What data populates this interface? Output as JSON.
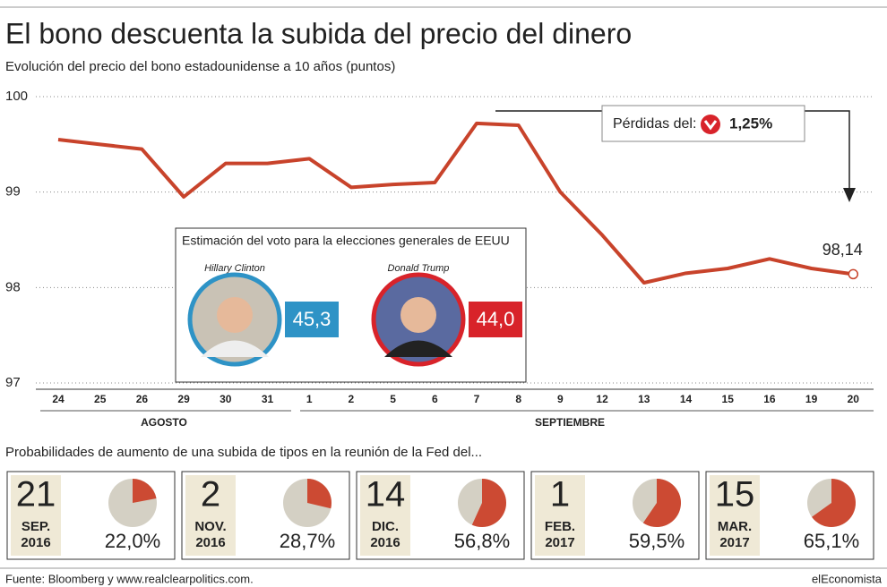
{
  "title": "El bono descuenta la subida del precio del dinero",
  "subtitle": "Evolución del precio del bono estadounidense a 10 años (puntos)",
  "source": "Fuente: Bloomberg y www.realclearpolitics.com.",
  "brand": "elEconomista",
  "chart_data": [
    {
      "type": "line",
      "categories": [
        "24",
        "25",
        "26",
        "29",
        "30",
        "31",
        "1",
        "2",
        "5",
        "6",
        "7",
        "8",
        "9",
        "12",
        "13",
        "14",
        "15",
        "16",
        "19",
        "20"
      ],
      "months": [
        "AGOSTO",
        "SEPTIEMBRE"
      ],
      "values": [
        99.55,
        99.5,
        99.45,
        98.95,
        99.3,
        99.3,
        99.35,
        99.05,
        99.08,
        99.1,
        99.72,
        99.7,
        99.0,
        98.55,
        98.05,
        98.15,
        98.2,
        98.3,
        98.2,
        98.14
      ],
      "value_labels": [
        null,
        null,
        null,
        null,
        null,
        null,
        null,
        null,
        null,
        null,
        null,
        null,
        null,
        null,
        null,
        null,
        null,
        null,
        null,
        "98,14"
      ],
      "color": "#c8432b",
      "ylim": [
        97,
        100
      ],
      "yticks": [
        97,
        98,
        99,
        100
      ],
      "grid": true,
      "loss_text": "Pérdidas del:",
      "loss_value": "1,25%"
    },
    {
      "type": "pie",
      "title": "Probabilidades de aumento de una subida de tipos en la reunión de la Fed del...",
      "colors": [
        "#cc4a33",
        "#d4d0c4"
      ],
      "meetings": [
        {
          "day": "21",
          "month": "SEP.",
          "year": "2016",
          "value": 22.0,
          "value_label": "22,0%"
        },
        {
          "day": "2",
          "month": "NOV.",
          "year": "2016",
          "value": 28.7,
          "value_label": "28,7%"
        },
        {
          "day": "14",
          "month": "DIC.",
          "year": "2016",
          "value": 56.8,
          "value_label": "56,8%"
        },
        {
          "day": "1",
          "month": "FEB.",
          "year": "2017",
          "value": 59.5,
          "value_label": "59,5%"
        },
        {
          "day": "15",
          "month": "MAR.",
          "year": "2017",
          "value": 65.1,
          "value_label": "65,1%"
        }
      ]
    }
  ],
  "poll": {
    "title": "Estimación del voto para la elecciones generales de EEUU",
    "candidates": [
      {
        "name": "Hillary Clinton",
        "value": "45,3",
        "color": "#2e93c6"
      },
      {
        "name": "Donald Trump",
        "value": "44,0",
        "color": "#d8232a"
      }
    ]
  }
}
